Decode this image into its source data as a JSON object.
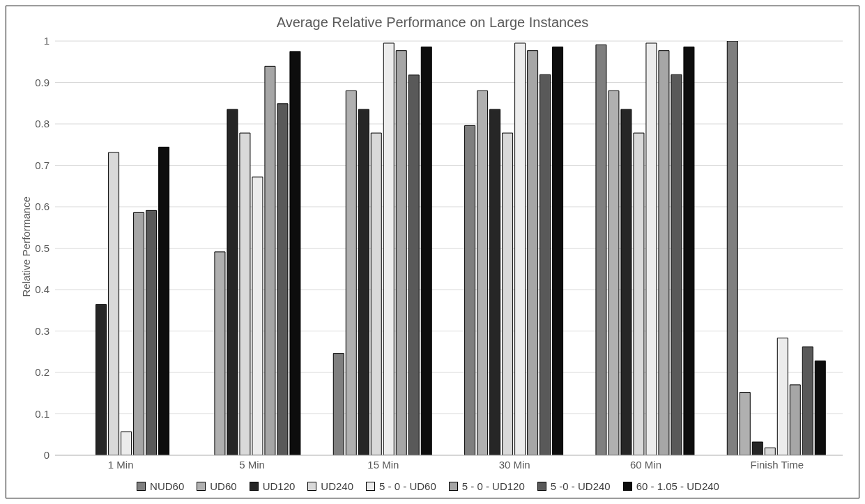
{
  "chart_data": {
    "type": "bar",
    "title": "Average Relative Performance on Large Instances",
    "ylabel": "Relative Performance",
    "categories": [
      "1 Min",
      "5 Min",
      "15 Min",
      "30 Min",
      "60 Min",
      "Finish Time"
    ],
    "series": [
      {
        "name": "NUD60",
        "color": "#7f7f7f",
        "values": [
          0,
          0,
          0.246,
          0.796,
          0.991,
          1.0
        ]
      },
      {
        "name": "UD60",
        "color": "#b0b0b0",
        "values": [
          0,
          0.491,
          0.88,
          0.88,
          0.88,
          0.152
        ]
      },
      {
        "name": "UD120",
        "color": "#262626",
        "values": [
          0.364,
          0.835,
          0.835,
          0.835,
          0.835,
          0.032
        ]
      },
      {
        "name": "UD240",
        "color": "#d9d9d9",
        "values": [
          0.731,
          0.778,
          0.778,
          0.778,
          0.778,
          0.018
        ]
      },
      {
        "name": "5 - 0 - UD60",
        "color": "#ececec",
        "values": [
          0.057,
          0.672,
          0.995,
          0.995,
          0.995,
          0.283
        ]
      },
      {
        "name": "5 - 0 - UD120",
        "color": "#a6a6a6",
        "values": [
          0.586,
          0.939,
          0.977,
          0.977,
          0.977,
          0.17
        ]
      },
      {
        "name": "5 -0 - UD240",
        "color": "#595959",
        "values": [
          0.591,
          0.849,
          0.918,
          0.919,
          0.919,
          0.262
        ]
      },
      {
        "name": "60 - 1.05 - UD240",
        "color": "#0d0d0d",
        "values": [
          0.744,
          0.975,
          0.986,
          0.986,
          0.986,
          0.228
        ]
      }
    ],
    "ylim": [
      0,
      1
    ],
    "yticks": [
      0,
      0.1,
      0.2,
      0.3,
      0.4,
      0.5,
      0.6,
      0.7,
      0.8,
      0.9,
      1
    ],
    "grid": "y",
    "legend": "bottom"
  }
}
